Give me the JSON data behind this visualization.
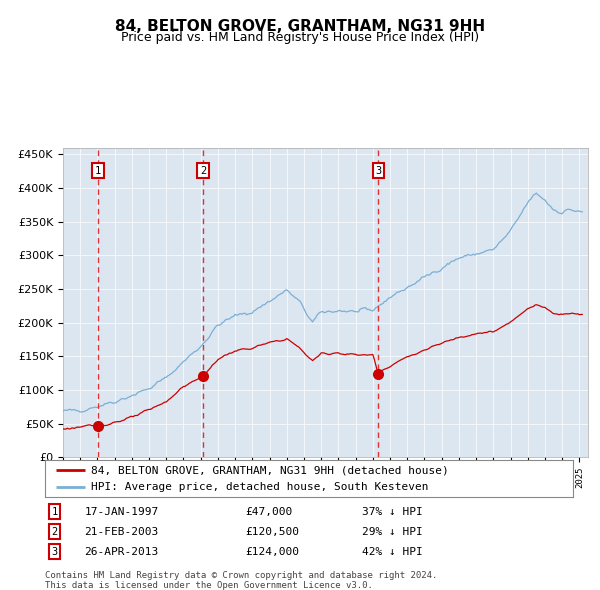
{
  "title": "84, BELTON GROVE, GRANTHAM, NG31 9HH",
  "subtitle": "Price paid vs. HM Land Registry's House Price Index (HPI)",
  "legend_label_red": "84, BELTON GROVE, GRANTHAM, NG31 9HH (detached house)",
  "legend_label_blue": "HPI: Average price, detached house, South Kesteven",
  "footer_line1": "Contains HM Land Registry data © Crown copyright and database right 2024.",
  "footer_line2": "This data is licensed under the Open Government Licence v3.0.",
  "transactions": [
    {
      "num": 1,
      "date": "17-JAN-1997",
      "price": 47000,
      "pct": "37%",
      "dir": "↓"
    },
    {
      "num": 2,
      "date": "21-FEB-2003",
      "price": 120500,
      "pct": "29%",
      "dir": "↓"
    },
    {
      "num": 3,
      "date": "26-APR-2013",
      "price": 124000,
      "pct": "42%",
      "dir": "↓"
    }
  ],
  "transaction_dates_decimal": [
    1997.04,
    2003.13,
    2013.32
  ],
  "transaction_prices": [
    47000,
    120500,
    124000
  ],
  "ylim": [
    0,
    460000
  ],
  "yticks": [
    0,
    50000,
    100000,
    150000,
    200000,
    250000,
    300000,
    350000,
    400000,
    450000
  ],
  "ytick_labels": [
    "£0",
    "£50K",
    "£100K",
    "£150K",
    "£200K",
    "£250K",
    "£300K",
    "£350K",
    "£400K",
    "£450K"
  ],
  "xlim_start": 1995.0,
  "xlim_end": 2025.5,
  "hpi_anchors_x": [
    1995.0,
    1996.0,
    1997.0,
    1998.0,
    1999.0,
    2000.0,
    2001.0,
    2002.0,
    2003.0,
    2004.0,
    2005.0,
    2006.0,
    2007.0,
    2008.0,
    2008.75,
    2009.5,
    2010.0,
    2011.0,
    2012.0,
    2013.0,
    2014.0,
    2015.0,
    2016.0,
    2017.0,
    2018.0,
    2019.0,
    2020.0,
    2021.0,
    2022.0,
    2022.5,
    2023.0,
    2023.5,
    2024.0,
    2024.5,
    2025.2
  ],
  "hpi_anchors_y": [
    68000,
    70000,
    76000,
    83000,
    92000,
    102000,
    118000,
    142000,
    165000,
    196000,
    210000,
    216000,
    232000,
    248000,
    230000,
    200000,
    215000,
    218000,
    216000,
    218000,
    238000,
    252000,
    267000,
    282000,
    296000,
    302000,
    308000,
    335000,
    378000,
    392000,
    382000,
    368000,
    364000,
    368000,
    363000
  ],
  "red_anchors_x": [
    1995.0,
    1996.0,
    1997.0,
    1997.04,
    1998.0,
    1999.0,
    2000.0,
    2001.0,
    2002.0,
    2003.0,
    2003.13,
    2003.5,
    2004.0,
    2005.0,
    2006.0,
    2007.0,
    2008.0,
    2008.75,
    2009.5,
    2010.0,
    2011.0,
    2012.0,
    2013.0,
    2013.32,
    2013.5,
    2014.0,
    2015.0,
    2016.0,
    2017.0,
    2018.0,
    2019.0,
    2020.0,
    2021.0,
    2022.0,
    2022.5,
    2023.0,
    2023.5,
    2024.0,
    2024.5,
    2025.2
  ],
  "red_anchors_y": [
    42000,
    45000,
    46500,
    47000,
    52000,
    59000,
    70000,
    83000,
    105000,
    118000,
    120500,
    130000,
    146000,
    158000,
    162000,
    170000,
    176000,
    162000,
    143000,
    154000,
    155000,
    152000,
    152000,
    124000,
    129000,
    136000,
    149000,
    159000,
    169000,
    179000,
    184000,
    186000,
    200000,
    222000,
    226000,
    222000,
    214000,
    212000,
    215000,
    212000
  ],
  "background_color": "#dce6f1",
  "red_color": "#cc0000",
  "blue_color": "#7bafd4",
  "vline_color": "#dd3333",
  "box_color": "#cc0000",
  "grid_color": "#ffffff",
  "title_fontsize": 11,
  "subtitle_fontsize": 9,
  "tick_fontsize": 8,
  "legend_fontsize": 8,
  "table_fontsize": 8,
  "footer_fontsize": 6.5
}
